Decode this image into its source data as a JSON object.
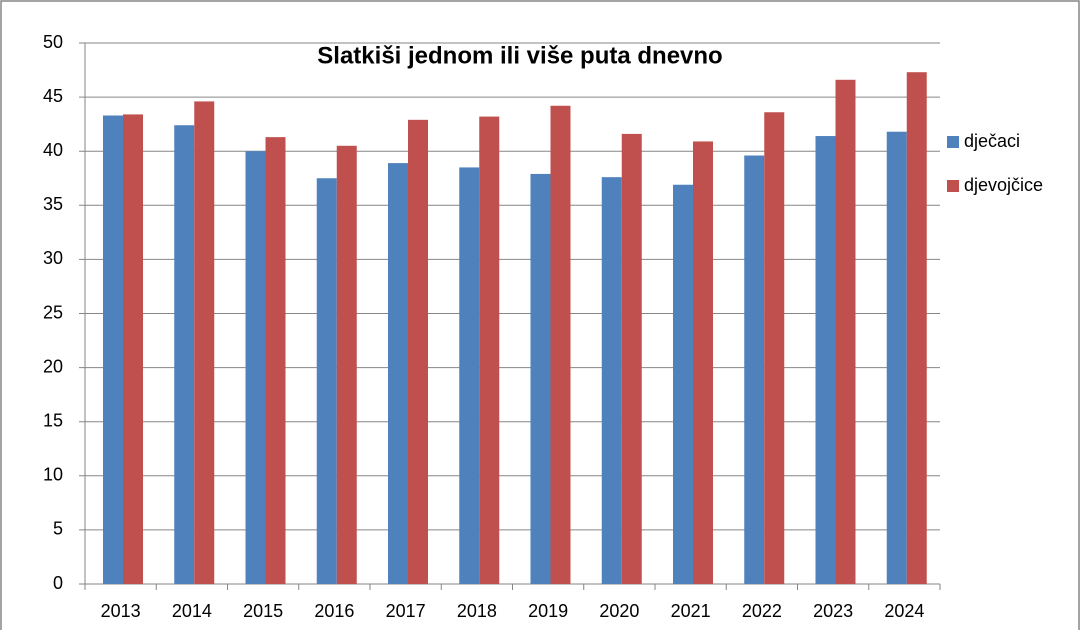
{
  "chart_data": {
    "type": "bar",
    "title": "Slatkiši jednom ili više puta dnevno",
    "categories": [
      "2013",
      "2014",
      "2015",
      "2016",
      "2017",
      "2018",
      "2019",
      "2020",
      "2021",
      "2022",
      "2023",
      "2024"
    ],
    "series": [
      {
        "name": "dječaci",
        "color": "#4f81bd",
        "values": [
          43.3,
          42.4,
          40.0,
          37.5,
          38.9,
          38.5,
          37.9,
          37.6,
          36.9,
          39.6,
          41.4,
          41.8
        ]
      },
      {
        "name": "djevojčice",
        "color": "#c0504d",
        "values": [
          43.4,
          44.6,
          41.3,
          40.5,
          42.9,
          43.2,
          44.2,
          41.6,
          40.9,
          43.6,
          46.6,
          47.3
        ]
      }
    ],
    "ylim": [
      0,
      50
    ],
    "yticks": [
      0,
      5,
      10,
      15,
      20,
      25,
      30,
      35,
      40,
      45,
      50
    ],
    "grid": true,
    "legend": "right"
  }
}
